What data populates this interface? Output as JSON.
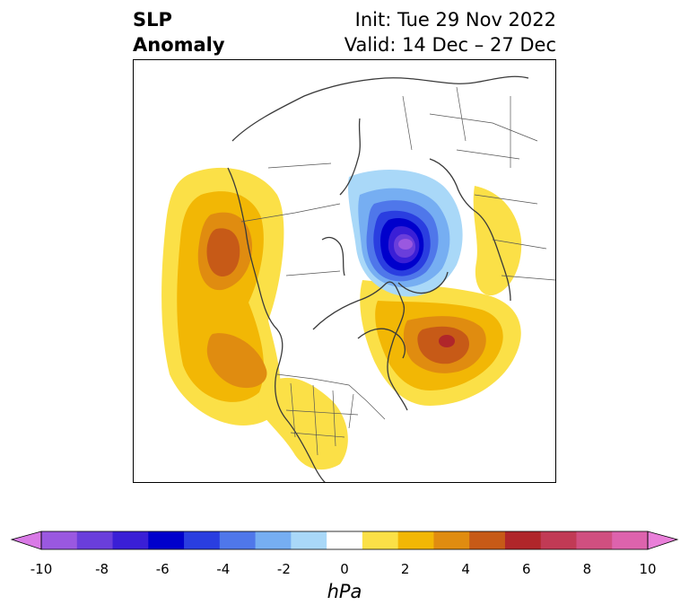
{
  "title": {
    "left_line1": "SLP",
    "left_line2": "Anomaly",
    "right_line1": "Init: Tue 29 Nov 2022",
    "right_line2": "Valid: 14 Dec – 27 Dec"
  },
  "colorbar": {
    "unit": "hPa",
    "ticks": [
      "-10",
      "-8",
      "-6",
      "-4",
      "-2",
      "0",
      "2",
      "4",
      "6",
      "8",
      "10"
    ],
    "colors": [
      "#d97ae6",
      "#9a58e0",
      "#6a3edb",
      "#3a1fd6",
      "#0000cc",
      "#2a3ee0",
      "#4f77ea",
      "#76aef2",
      "#a9d8f8",
      "#ffffff",
      "#fbe047",
      "#f2b705",
      "#e08c10",
      "#c75a17",
      "#b0262a",
      "#c13a55",
      "#d04f80",
      "#dd63ad",
      "#e97fd9"
    ],
    "extend": "both"
  },
  "map": {
    "projection": "north polar stereographic",
    "features": [
      "coastlines",
      "country borders",
      "US state borders"
    ],
    "anomaly_centers": [
      {
        "region": "Gulf of Alaska / NE Pacific",
        "sign": "positive",
        "peak_hPa": 5
      },
      {
        "region": "NE Pacific off California",
        "sign": "positive",
        "peak_hPa": 4
      },
      {
        "region": "North Atlantic / Greenland",
        "sign": "positive",
        "peak_hPa": 6
      },
      {
        "region": "Scandinavia / NW Russia",
        "sign": "negative",
        "peak_hPa": -10
      },
      {
        "region": "Western US",
        "sign": "positive",
        "peak_hPa": 1
      }
    ]
  }
}
